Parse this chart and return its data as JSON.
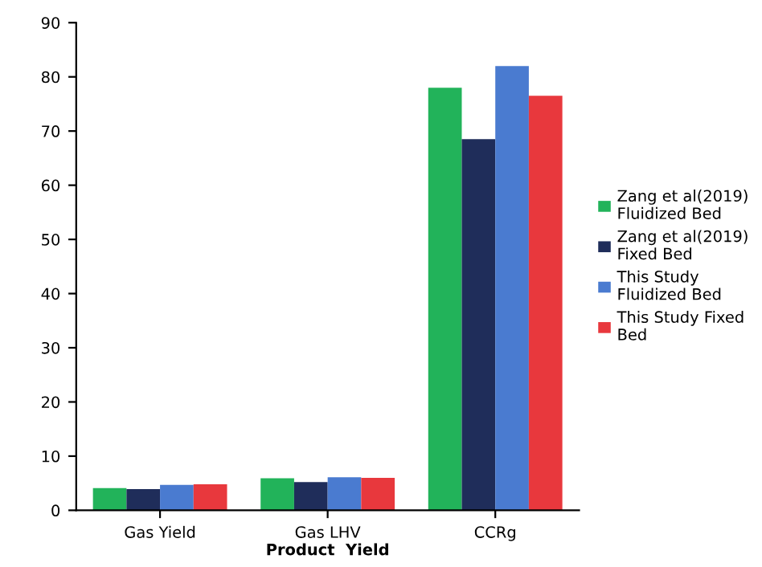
{
  "chart_data": {
    "type": "bar",
    "xlabel": "Product  Yield",
    "categories": [
      "Gas Yield",
      "Gas LHV",
      "CCRg"
    ],
    "series": [
      {
        "name": "Zang et al(2019)\nFluidized Bed",
        "color": "#22b35a",
        "values": [
          4.1,
          5.9,
          78
        ]
      },
      {
        "name": "Zang et al(2019)\nFixed Bed",
        "color": "#1f2d5a",
        "values": [
          3.9,
          5.2,
          68.5
        ]
      },
      {
        "name": "This Study\nFluidized Bed",
        "color": "#4a7bd0",
        "values": [
          4.7,
          6.1,
          82
        ]
      },
      {
        "name": "This Study Fixed\nBed",
        "color": "#e8383d",
        "values": [
          4.8,
          6.0,
          76.5
        ]
      }
    ],
    "ylim": [
      0,
      90
    ],
    "yticks": [
      0,
      10,
      20,
      30,
      40,
      50,
      60,
      70,
      80,
      90
    ],
    "grid": false,
    "legend": "right"
  }
}
